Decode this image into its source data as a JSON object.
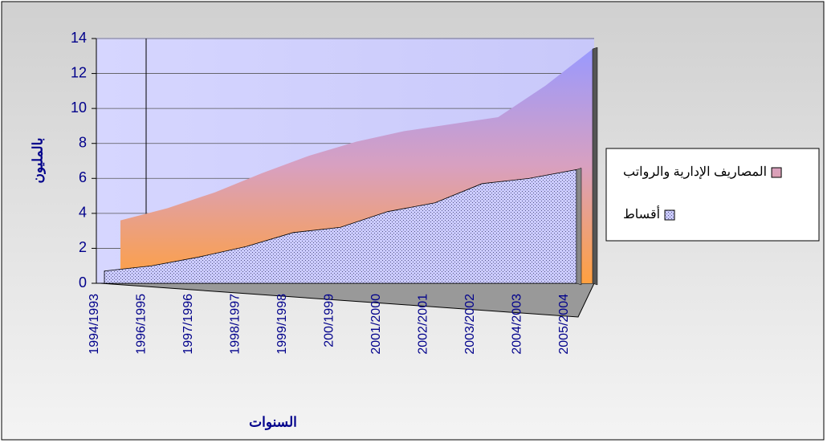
{
  "chart_data": {
    "type": "area",
    "y_label": "بالمليون",
    "x_label": "السنوات",
    "categories": [
      "1994/1993",
      "1996/1995",
      "1997/1996",
      "1998/1997",
      "1999/1998",
      "200/1999",
      "2001/2000",
      "2002/2001",
      "2003/2002",
      "2004/2003",
      "2005/2004"
    ],
    "series": [
      {
        "name": "المصاريف الإدارية والرواتب",
        "color": "#9999ff",
        "values": [
          3.6,
          4.3,
          5.2,
          6.3,
          7.3,
          8.1,
          8.7,
          9.1,
          9.5,
          11.3,
          13.4
        ]
      },
      {
        "name": "أقساط",
        "color": "#ccccff",
        "values": [
          0.7,
          1.0,
          1.5,
          2.1,
          2.9,
          3.2,
          4.1,
          4.6,
          5.7,
          6.0,
          6.5
        ]
      }
    ],
    "ylim": [
      0,
      14
    ],
    "yticks": [
      0,
      2,
      4,
      6,
      8,
      10,
      12,
      14
    ],
    "grid": true,
    "legend": "right"
  }
}
